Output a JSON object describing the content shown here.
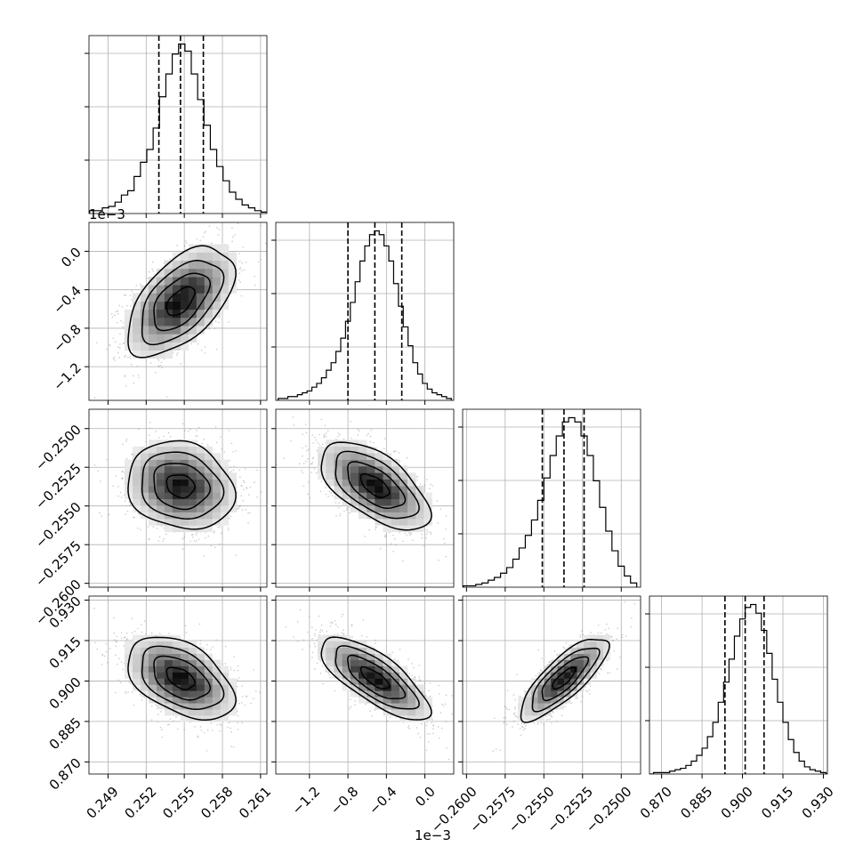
{
  "chart_data": {
    "type": "corner",
    "title": "",
    "grid": true,
    "parameters": [
      {
        "range": [
          0.2475,
          0.2615
        ],
        "ticks": [
          0.249,
          0.252,
          0.255,
          0.258,
          0.261
        ],
        "tick_labels": [
          "0.249",
          "0.252",
          "0.255",
          "0.258",
          "0.261"
        ],
        "offset_text": "",
        "quantiles": [
          0.253,
          0.2547,
          0.2565
        ],
        "hist_x": [
          0.2478,
          0.2483,
          0.2488,
          0.2493,
          0.2498,
          0.2503,
          0.2508,
          0.2513,
          0.2518,
          0.2523,
          0.2528,
          0.2533,
          0.2538,
          0.2543,
          0.2548,
          0.2553,
          0.2558,
          0.2563,
          0.2568,
          0.2573,
          0.2578,
          0.2583,
          0.2588,
          0.2593,
          0.2598,
          0.2603,
          0.2608,
          0.2613
        ],
        "hist_counts": [
          2,
          2,
          4,
          5,
          8,
          13,
          16,
          26,
          36,
          45,
          60,
          82,
          98,
          112,
          119,
          114,
          98,
          80,
          62,
          45,
          33,
          23,
          15,
          10,
          6,
          4,
          2,
          1
        ]
      },
      {
        "range": [
          -1.55,
          0.3
        ],
        "ticks": [
          -1.2,
          -0.8,
          -0.4,
          0.0
        ],
        "tick_labels": [
          "−1.2",
          "−0.8",
          "−0.4",
          "0.0"
        ],
        "offset_text": "1e−3",
        "quantiles": [
          -0.8,
          -0.52,
          -0.24
        ],
        "hist_x": [
          -1.5,
          -1.45,
          -1.4,
          -1.35,
          -1.3,
          -1.25,
          -1.2,
          -1.15,
          -1.1,
          -1.05,
          -1.0,
          -0.95,
          -0.9,
          -0.85,
          -0.8,
          -0.75,
          -0.7,
          -0.65,
          -0.6,
          -0.55,
          -0.5,
          -0.45,
          -0.4,
          -0.35,
          -0.3,
          -0.25,
          -0.2,
          -0.15,
          -0.1,
          -0.05,
          0.0,
          0.05,
          0.1,
          0.15,
          0.2,
          0.25
        ],
        "hist_counts": [
          1,
          1,
          2,
          2,
          3,
          4,
          5,
          7,
          9,
          12,
          16,
          20,
          26,
          33,
          42,
          52,
          63,
          74,
          82,
          88,
          90,
          88,
          82,
          74,
          62,
          50,
          39,
          29,
          20,
          14,
          9,
          6,
          4,
          3,
          2,
          1
        ]
      },
      {
        "range": [
          -0.26025,
          -0.24875
        ],
        "ticks": [
          -0.26,
          -0.2575,
          -0.255,
          -0.2525,
          -0.25
        ],
        "tick_labels": [
          "−0.2600",
          "−0.2575",
          "−0.2550",
          "−0.2525",
          "−0.2500"
        ],
        "offset_text": "",
        "quantiles": [
          -0.2551,
          -0.2537,
          -0.2524
        ],
        "hist_x": [
          -0.26,
          -0.2596,
          -0.2592,
          -0.2588,
          -0.2584,
          -0.258,
          -0.2576,
          -0.2572,
          -0.2568,
          -0.2564,
          -0.256,
          -0.2556,
          -0.2552,
          -0.2548,
          -0.2544,
          -0.254,
          -0.2536,
          -0.2532,
          -0.2528,
          -0.2524,
          -0.252,
          -0.2516,
          -0.2512,
          -0.2508,
          -0.2504,
          -0.25,
          -0.2496,
          -0.2492
        ],
        "hist_counts": [
          1,
          1,
          2,
          3,
          5,
          7,
          10,
          14,
          20,
          28,
          37,
          48,
          62,
          78,
          94,
          108,
          118,
          121,
          118,
          108,
          94,
          76,
          57,
          40,
          26,
          15,
          8,
          3
        ]
      },
      {
        "range": [
          0.8655,
          0.9315
        ],
        "ticks": [
          0.87,
          0.885,
          0.9,
          0.915,
          0.93
        ],
        "tick_labels": [
          "0.870",
          "0.885",
          "0.900",
          "0.915",
          "0.930"
        ],
        "offset_text": "",
        "quantiles": [
          0.8935,
          0.901,
          0.908
        ],
        "hist_x": [
          0.866,
          0.868,
          0.87,
          0.872,
          0.874,
          0.876,
          0.878,
          0.88,
          0.882,
          0.884,
          0.886,
          0.888,
          0.89,
          0.892,
          0.894,
          0.896,
          0.898,
          0.9,
          0.902,
          0.904,
          0.906,
          0.908,
          0.91,
          0.912,
          0.914,
          0.916,
          0.918,
          0.92,
          0.922,
          0.924,
          0.926,
          0.928,
          0.93,
          0.932
        ],
        "hist_counts": [
          0,
          1,
          1,
          1,
          2,
          3,
          4,
          6,
          9,
          13,
          18,
          26,
          36,
          50,
          64,
          80,
          96,
          108,
          116,
          118,
          112,
          100,
          84,
          66,
          50,
          36,
          24,
          15,
          9,
          5,
          3,
          2,
          1,
          0
        ]
      }
    ],
    "pairs": [
      {
        "row": 1,
        "col": 0,
        "center": [
          0.2547,
          -0.52
        ],
        "sd": [
          0.002,
          0.27
        ],
        "rho": 0.55
      },
      {
        "row": 2,
        "col": 0,
        "center": [
          0.2547,
          -0.2537
        ],
        "sd": [
          0.002,
          0.00135
        ],
        "rho": -0.15
      },
      {
        "row": 2,
        "col": 1,
        "center": [
          -0.52,
          -0.2537
        ],
        "sd": [
          0.27,
          0.00135
        ],
        "rho": -0.6
      },
      {
        "row": 3,
        "col": 0,
        "center": [
          0.2547,
          0.901
        ],
        "sd": [
          0.002,
          0.0073
        ],
        "rho": -0.45
      },
      {
        "row": 3,
        "col": 1,
        "center": [
          -0.52,
          0.901
        ],
        "sd": [
          0.27,
          0.0073
        ],
        "rho": -0.75
      },
      {
        "row": 3,
        "col": 2,
        "center": [
          -0.2537,
          0.901
        ],
        "sd": [
          0.00135,
          0.0073
        ],
        "rho": 0.8
      }
    ]
  }
}
